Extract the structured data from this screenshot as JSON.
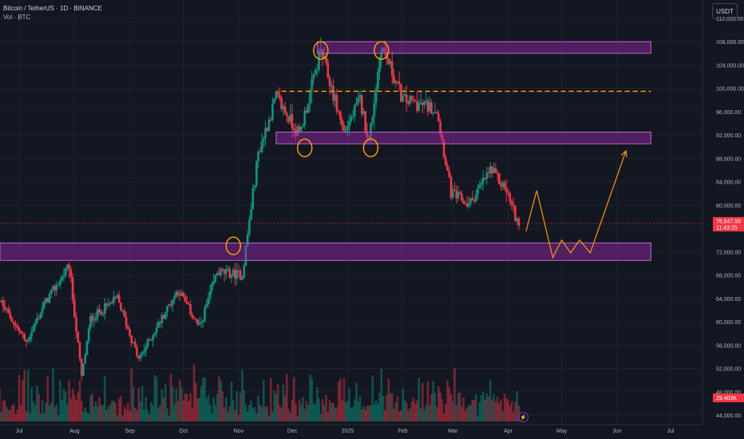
{
  "header": {
    "symbol_title": "Bitcoin / TetherUS · 1D · BINANCE",
    "volume_label": "Vol · BTC",
    "currency_button": "USDT",
    "flash_icon": "lightning-icon"
  },
  "colors": {
    "background": "#131722",
    "up": "#089981",
    "down": "#f23645",
    "zone": "#9c27b0",
    "marker": "#ff9800",
    "axis_text": "#b2b5be"
  },
  "chart_data": {
    "type": "candlestick",
    "x_ticks": [
      "Jul",
      "Aug",
      "Sep",
      "Oct",
      "Nov",
      "Dec",
      "2025",
      "Feb",
      "Mar",
      "Apr",
      "May",
      "Jun",
      "Jul"
    ],
    "y_ticks": [
      112000,
      108000,
      104000,
      100000,
      96000,
      92000,
      88000,
      84000,
      80000,
      76000,
      72000,
      68000,
      64000,
      60000,
      56000,
      52000,
      48000,
      44000
    ],
    "y_tick_labels": [
      "112,000.00",
      "108,000.00",
      "104,000.00",
      "100,000.00",
      "96,000.00",
      "92,000.00",
      "88,000.00",
      "84,000.00",
      "80,000.00",
      "76,000.00",
      "72,000.00",
      "68,000.00",
      "64,000.00",
      "60,000.00",
      "56,000.00",
      "52,000.00",
      "48,000.00",
      "44,000.00"
    ],
    "ylim": [
      43000,
      113000
    ],
    "price_path": [
      [
        "2024-06-15",
        66000
      ],
      [
        "2024-07-05",
        56500
      ],
      [
        "2024-07-15",
        63000
      ],
      [
        "2024-07-29",
        69500
      ],
      [
        "2024-08-05",
        50500
      ],
      [
        "2024-08-10",
        60500
      ],
      [
        "2024-08-25",
        64000
      ],
      [
        "2024-09-06",
        53500
      ],
      [
        "2024-09-15",
        58500
      ],
      [
        "2024-09-28",
        65500
      ],
      [
        "2024-10-10",
        59000
      ],
      [
        "2024-10-20",
        68500
      ],
      [
        "2024-11-03",
        68000
      ],
      [
        "2024-11-12",
        89000
      ],
      [
        "2024-11-22",
        98500
      ],
      [
        "2024-12-05",
        92000
      ],
      [
        "2024-12-17",
        106500
      ],
      [
        "2024-12-30",
        92500
      ],
      [
        "2025-01-08",
        98000
      ],
      [
        "2025-01-13",
        91000
      ],
      [
        "2025-01-20",
        107500
      ],
      [
        "2025-02-01",
        98000
      ],
      [
        "2025-02-20",
        96500
      ],
      [
        "2025-02-28",
        82000
      ],
      [
        "2025-03-10",
        80000
      ],
      [
        "2025-03-22",
        86000
      ],
      [
        "2025-03-31",
        82500
      ],
      [
        "2025-04-07",
        76500
      ]
    ],
    "current_price_label": "76,847.99",
    "countdown_label": "11:43:25",
    "volume_label": "29.403K",
    "resistance_zones": [
      {
        "from": 106000,
        "to": 108000,
        "start": "2024-12-15",
        "end": "2025-06-20"
      },
      {
        "from": 90500,
        "to": 92500,
        "start": "2024-11-22",
        "end": "2025-06-20"
      },
      {
        "from": 70500,
        "to": 73500,
        "start": "2024-06-15",
        "end": "2025-06-20"
      }
    ],
    "dashed_level": {
      "price": 99500,
      "start": "2024-11-25",
      "end": "2025-06-20"
    },
    "marked_touches": [
      [
        "2024-10-29",
        73000
      ],
      [
        "2024-12-08",
        89800
      ],
      [
        "2024-12-17",
        106500
      ],
      [
        "2025-01-14",
        89800
      ],
      [
        "2025-01-20",
        106500
      ]
    ],
    "projection": [
      [
        "2025-04-11",
        75500
      ],
      [
        "2025-04-17",
        82500
      ],
      [
        "2025-04-26",
        71000
      ],
      [
        "2025-05-01",
        74000
      ],
      [
        "2025-05-06",
        71800
      ],
      [
        "2025-05-11",
        74000
      ],
      [
        "2025-05-17",
        71800
      ],
      [
        "2025-06-06",
        89300
      ]
    ]
  }
}
